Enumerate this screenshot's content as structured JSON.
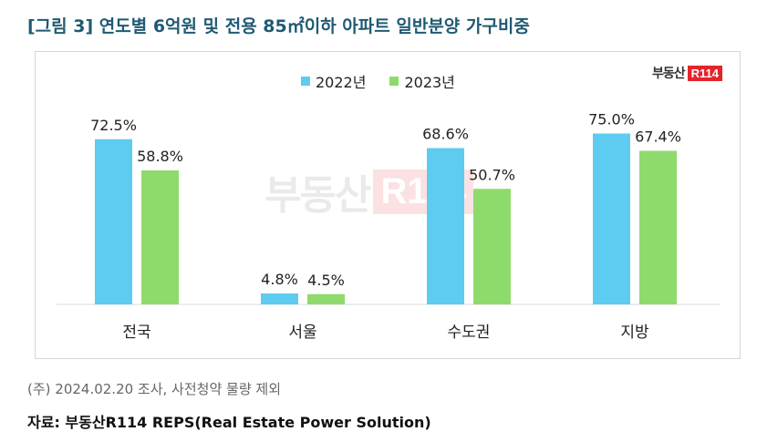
{
  "title": "[그림 3] 연도별 6억원 및 전용 85㎡이하 아파트 일반분양 가구비중",
  "logo": {
    "text": "부동산",
    "box": "R114"
  },
  "footnote": "(주) 2024.02.20 조사, 사전청약 물량 제외",
  "source": "자료: 부동산R114 REPS(Real Estate Power Solution)",
  "chart_data": {
    "type": "bar",
    "categories": [
      "전국",
      "서울",
      "수도권",
      "지방"
    ],
    "series": [
      {
        "name": "2022년",
        "values": [
          72.5,
          4.8,
          68.6,
          75.0
        ],
        "labels": [
          "72.5%",
          "4.8%",
          "68.6%",
          "75.0%"
        ],
        "color": "#5ecbf1"
      },
      {
        "name": "2023년",
        "values": [
          58.8,
          4.5,
          50.7,
          67.4
        ],
        "labels": [
          "58.8%",
          "4.5%",
          "50.7%",
          "67.4%"
        ],
        "color": "#8fda6c"
      }
    ],
    "ylim": [
      0,
      100
    ],
    "grid": false,
    "legend": "top-center"
  }
}
